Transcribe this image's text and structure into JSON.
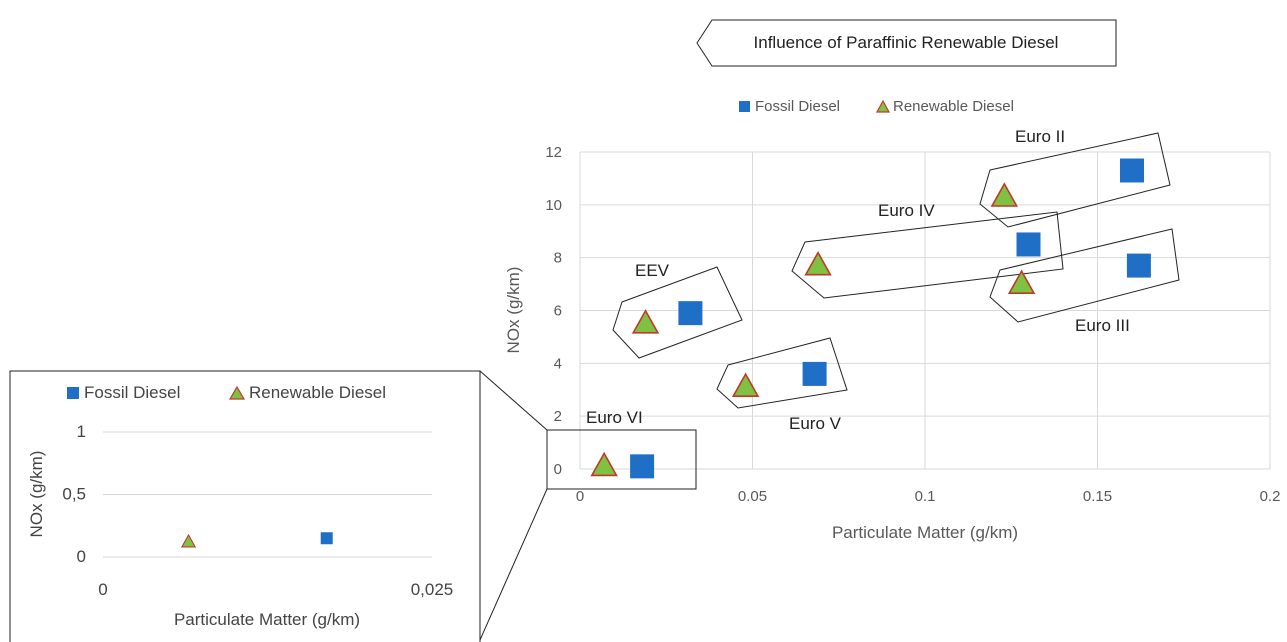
{
  "title": "Influence of Paraffinic Renewable Diesel",
  "colors": {
    "fossil": "#1f6fc6",
    "renewable_fill": "#7fc241",
    "renewable_edge": "#c0392b",
    "grid": "#d9d9d9"
  },
  "chart_data": [
    {
      "type": "scatter",
      "xlabel": "Particulate Matter (g/km)",
      "ylabel": "NOx (g/km)",
      "xlim": [
        0,
        0.2
      ],
      "ylim": [
        0,
        12
      ],
      "xticks": [
        "0",
        "0.05",
        "0.1",
        "0.15",
        "0.2"
      ],
      "yticks": [
        "0",
        "2",
        "4",
        "6",
        "8",
        "10",
        "12"
      ],
      "legend": [
        "Fossil Diesel",
        "Renewable Diesel"
      ],
      "legend_position": "top",
      "grid": true,
      "series": [
        {
          "name": "Fossil Diesel",
          "marker": "square",
          "points": [
            [
              0.018,
              0.1
            ],
            [
              0.032,
              5.9
            ],
            [
              0.068,
              3.6
            ],
            [
              0.13,
              8.5
            ],
            [
              0.16,
              11.3
            ],
            [
              0.162,
              7.7
            ]
          ]
        },
        {
          "name": "Renewable Diesel",
          "marker": "triangle",
          "points": [
            [
              0.007,
              0.1
            ],
            [
              0.019,
              5.5
            ],
            [
              0.048,
              3.1
            ],
            [
              0.069,
              7.7
            ],
            [
              0.123,
              10.3
            ],
            [
              0.128,
              7.0
            ]
          ]
        }
      ],
      "annotations": [
        "Euro II",
        "Euro IV",
        "Euro III",
        "EEV",
        "Euro V",
        "Euro VI"
      ]
    },
    {
      "type": "scatter",
      "xlabel": "Particulate Matter (g/km)",
      "ylabel": "NOx (g/km)",
      "xlim": [
        0,
        0.025
      ],
      "ylim": [
        0,
        1
      ],
      "xticks": [
        "0",
        "0,025"
      ],
      "yticks": [
        "0",
        "0,5",
        "1"
      ],
      "legend": [
        "Fossil Diesel",
        "Renewable Diesel"
      ],
      "legend_position": "top",
      "grid": true,
      "series": [
        {
          "name": "Fossil Diesel",
          "marker": "square",
          "points": [
            [
              0.017,
              0.15
            ]
          ]
        },
        {
          "name": "Renewable Diesel",
          "marker": "triangle",
          "points": [
            [
              0.0065,
              0.12
            ]
          ]
        }
      ]
    }
  ]
}
